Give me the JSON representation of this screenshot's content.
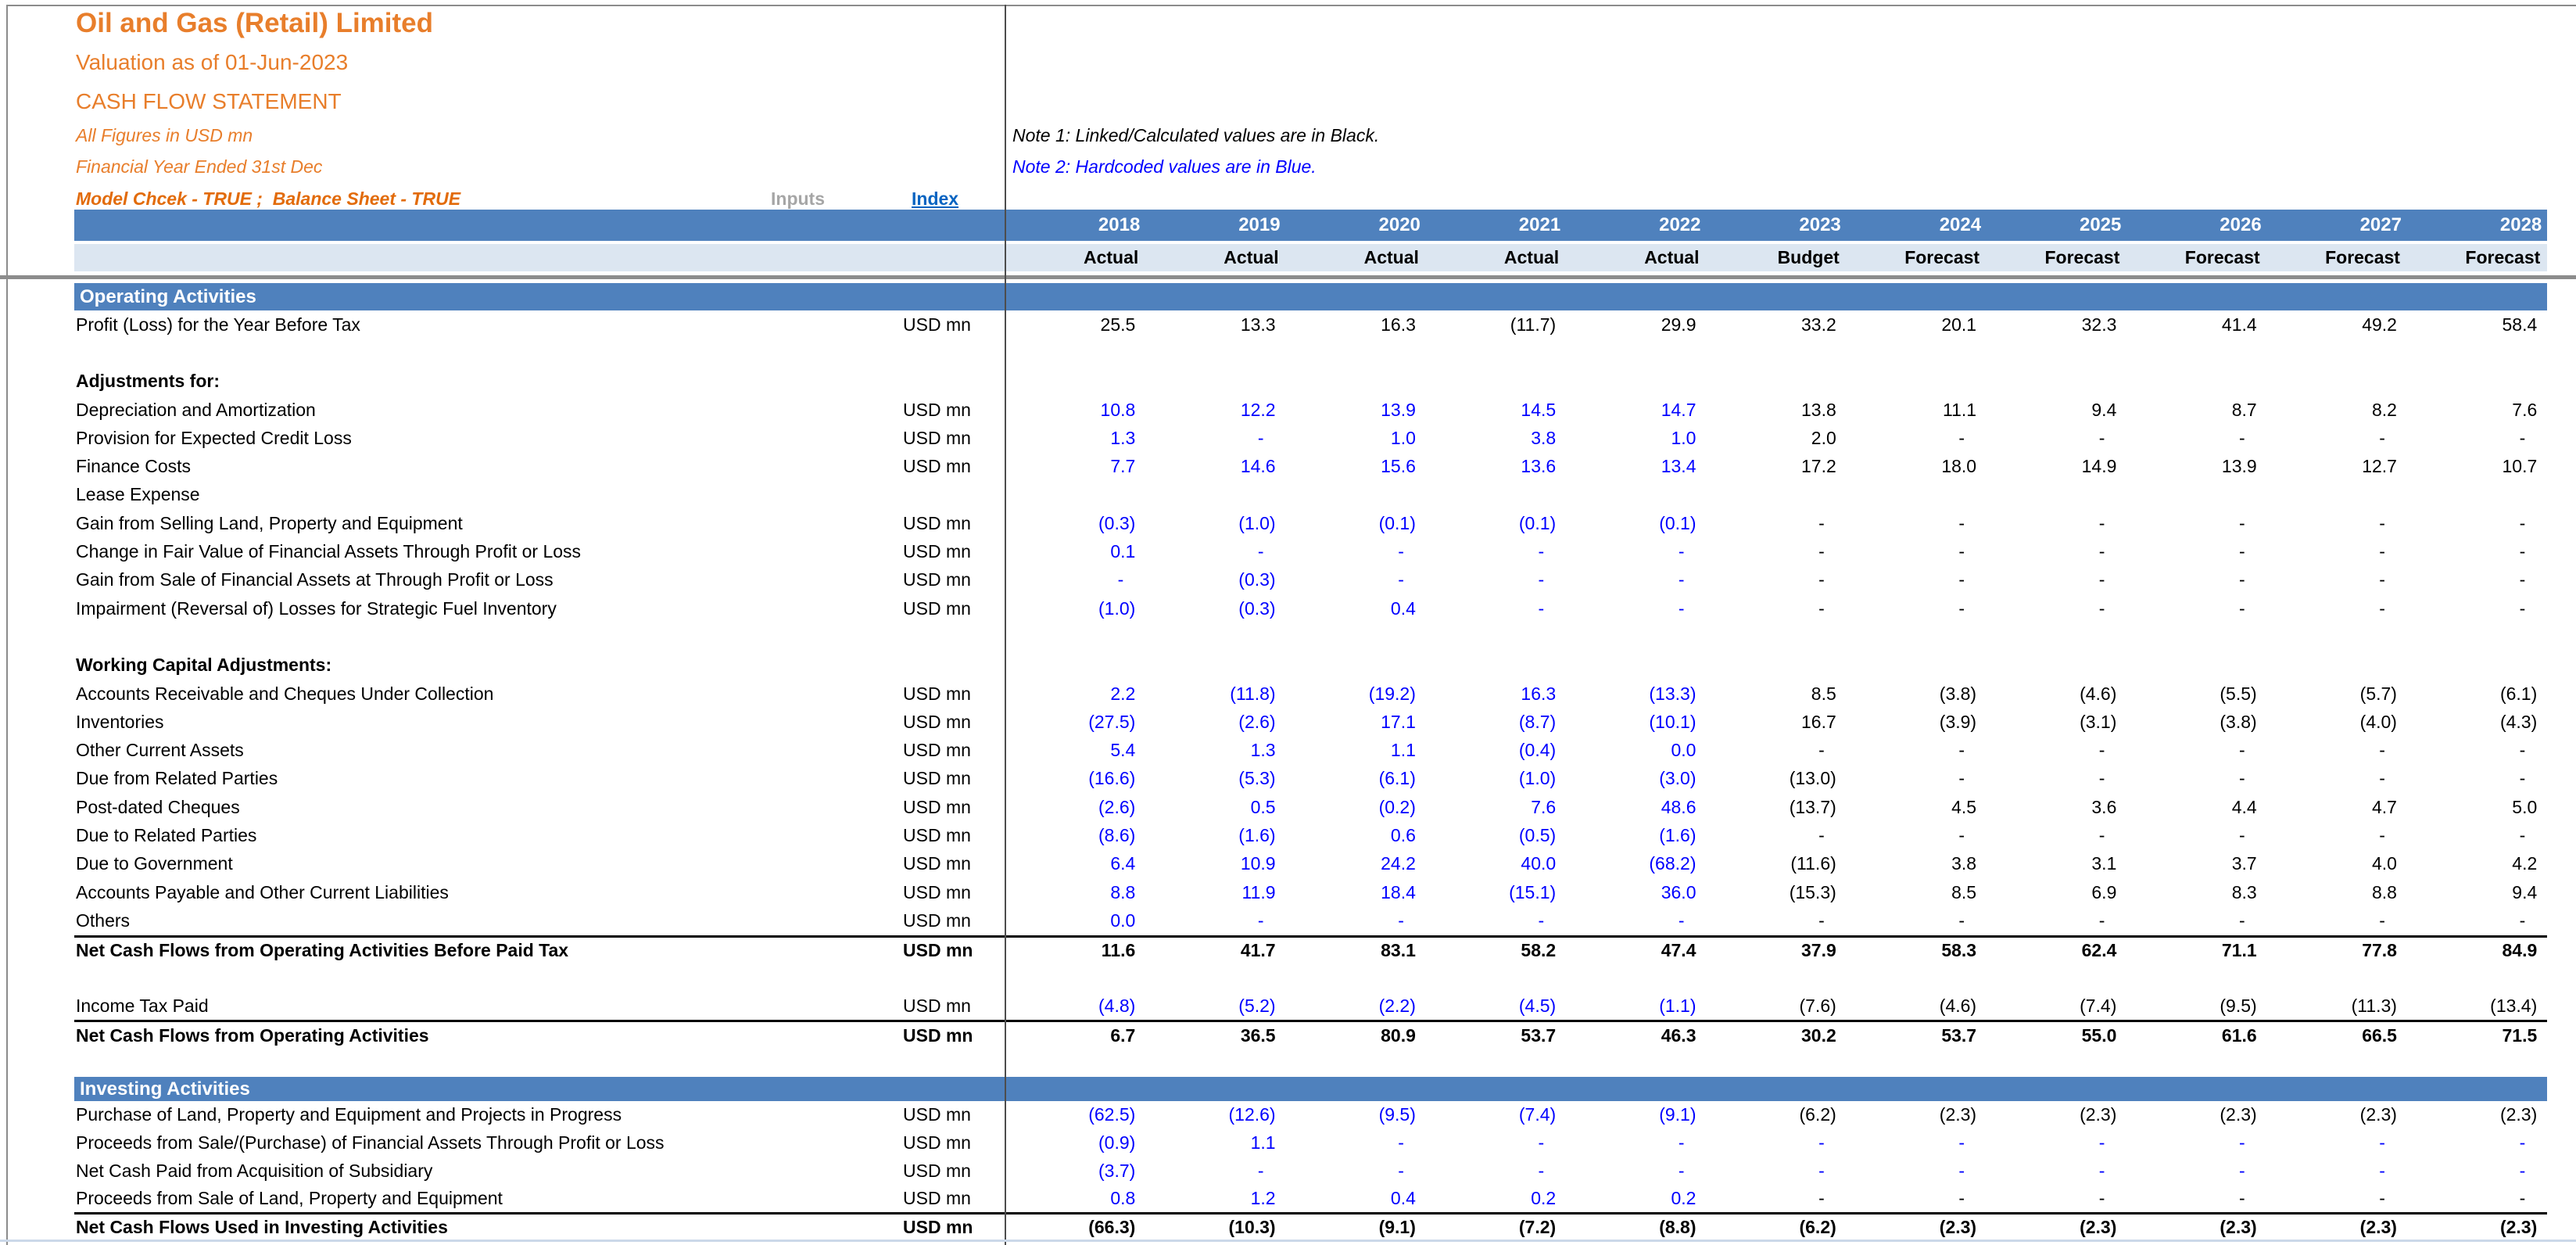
{
  "header": {
    "company": "Oil and Gas (Retail) Limited",
    "valuation": "Valuation as of 01-Jun-2023",
    "statement": "CASH FLOW STATEMENT",
    "figures_note": "All Figures in USD mn",
    "fy_note": "Financial Year Ended 31st Dec",
    "model_check": "Model Chcek - TRUE ;  Balance Sheet - TRUE",
    "inputs_label": "Inputs",
    "index_link": "Index"
  },
  "notes": {
    "note1": "Note 1: Linked/Calculated values are in Black.",
    "note2": "Note 2: Hardcoded values are in Blue."
  },
  "colors": {
    "band_blue": "#4F81BD",
    "band_light": "#DCE6F1",
    "hardcoded_blue": "#0000FF",
    "calculated_black": "#000000",
    "title_orange": "#E87E2B",
    "model_check_orange": "#E26B0A",
    "link_blue": "#0563C1",
    "inputs_gray": "#A6A6A6"
  },
  "columns": {
    "years": [
      "2018",
      "2019",
      "2020",
      "2021",
      "2022",
      "2023",
      "2024",
      "2025",
      "2026",
      "2027",
      "2028"
    ],
    "status": [
      "Actual",
      "Actual",
      "Actual",
      "Actual",
      "Actual",
      "Budget",
      "Forecast",
      "Forecast",
      "Forecast",
      "Forecast",
      "Forecast"
    ]
  },
  "unit_label": "USD mn",
  "sections": [
    {
      "title": "Operating Activities",
      "rows": [
        {
          "label": "Profit (Loss) for the Year Before Tax",
          "unit": "USD mn",
          "values": [
            "25.5",
            "13.3",
            "16.3",
            "(11.7)",
            "29.9",
            "33.2",
            "20.1",
            "32.3",
            "41.4",
            "49.2",
            "58.4"
          ],
          "blue": 0
        },
        {
          "blank": true
        },
        {
          "label": "Adjustments for:",
          "subheader": true
        },
        {
          "label": "Depreciation and Amortization",
          "unit": "USD mn",
          "values": [
            "10.8",
            "12.2",
            "13.9",
            "14.5",
            "14.7",
            "13.8",
            "11.1",
            "9.4",
            "8.7",
            "8.2",
            "7.6"
          ],
          "blue": 5
        },
        {
          "label": "Provision for Expected Credit Loss",
          "unit": "USD mn",
          "values": [
            "1.3",
            "-",
            "1.0",
            "3.8",
            "1.0",
            "2.0",
            "-",
            "-",
            "-",
            "-",
            "-"
          ],
          "blue": 5
        },
        {
          "label": "Finance Costs",
          "unit": "USD mn",
          "values": [
            "7.7",
            "14.6",
            "15.6",
            "13.6",
            "13.4",
            "17.2",
            "18.0",
            "14.9",
            "13.9",
            "12.7",
            "10.7"
          ],
          "blue": 5
        },
        {
          "label": "Lease Expense",
          "unit": "",
          "values": null
        },
        {
          "label": "Gain from Selling Land, Property and Equipment",
          "unit": "USD mn",
          "values": [
            "(0.3)",
            "(1.0)",
            "(0.1)",
            "(0.1)",
            "(0.1)",
            "-",
            "-",
            "-",
            "-",
            "-",
            "-"
          ],
          "blue": 5
        },
        {
          "label": "Change in Fair Value of Financial Assets Through Profit or Loss",
          "unit": "USD mn",
          "values": [
            "0.1",
            "-",
            "-",
            "-",
            "-",
            "-",
            "-",
            "-",
            "-",
            "-",
            "-"
          ],
          "blue": 5
        },
        {
          "label": "Gain from Sale of Financial Assets at Through Profit or Loss",
          "unit": "USD mn",
          "values": [
            "-",
            "(0.3)",
            "-",
            "-",
            "-",
            "-",
            "-",
            "-",
            "-",
            "-",
            "-"
          ],
          "blue": 5
        },
        {
          "label": "Impairment (Reversal of) Losses for Strategic Fuel Inventory",
          "unit": "USD mn",
          "values": [
            "(1.0)",
            "(0.3)",
            "0.4",
            "-",
            "-",
            "-",
            "-",
            "-",
            "-",
            "-",
            "-"
          ],
          "blue": 5
        },
        {
          "blank": true
        },
        {
          "label": "Working Capital Adjustments:",
          "subheader": true
        },
        {
          "label": "Accounts Receivable and Cheques Under Collection",
          "unit": "USD mn",
          "values": [
            "2.2",
            "(11.8)",
            "(19.2)",
            "16.3",
            "(13.3)",
            "8.5",
            "(3.8)",
            "(4.6)",
            "(5.5)",
            "(5.7)",
            "(6.1)"
          ],
          "blue": 5
        },
        {
          "label": "Inventories",
          "unit": "USD mn",
          "values": [
            "(27.5)",
            "(2.6)",
            "17.1",
            "(8.7)",
            "(10.1)",
            "16.7",
            "(3.9)",
            "(3.1)",
            "(3.8)",
            "(4.0)",
            "(4.3)"
          ],
          "blue": 5
        },
        {
          "label": "Other Current Assets",
          "unit": "USD mn",
          "values": [
            "5.4",
            "1.3",
            "1.1",
            "(0.4)",
            "0.0",
            "-",
            "-",
            "-",
            "-",
            "-",
            "-"
          ],
          "blue": 5
        },
        {
          "label": "Due from Related Parties",
          "unit": "USD mn",
          "values": [
            "(16.6)",
            "(5.3)",
            "(6.1)",
            "(1.0)",
            "(3.0)",
            "(13.0)",
            "-",
            "-",
            "-",
            "-",
            "-"
          ],
          "blue": 5
        },
        {
          "label": "Post-dated Cheques",
          "unit": "USD mn",
          "values": [
            "(2.6)",
            "0.5",
            "(0.2)",
            "7.6",
            "48.6",
            "(13.7)",
            "4.5",
            "3.6",
            "4.4",
            "4.7",
            "5.0"
          ],
          "blue": 5
        },
        {
          "label": "Due to Related Parties",
          "unit": "USD mn",
          "values": [
            "(8.6)",
            "(1.6)",
            "0.6",
            "(0.5)",
            "(1.6)",
            "-",
            "-",
            "-",
            "-",
            "-",
            "-"
          ],
          "blue": 5
        },
        {
          "label": "Due to Government",
          "unit": "USD mn",
          "values": [
            "6.4",
            "10.9",
            "24.2",
            "40.0",
            "(68.2)",
            "(11.6)",
            "3.8",
            "3.1",
            "3.7",
            "4.0",
            "4.2"
          ],
          "blue": 5
        },
        {
          "label": "Accounts Payable and Other Current Liabilities",
          "unit": "USD mn",
          "values": [
            "8.8",
            "11.9",
            "18.4",
            "(15.1)",
            "36.0",
            "(15.3)",
            "8.5",
            "6.9",
            "8.3",
            "8.8",
            "9.4"
          ],
          "blue": 5
        },
        {
          "label": "Others",
          "unit": "USD mn",
          "values": [
            "0.0",
            "-",
            "-",
            "-",
            "-",
            "-",
            "-",
            "-",
            "-",
            "-",
            "-"
          ],
          "blue": 5
        },
        {
          "label": "Net Cash Flows from Operating Activities Before Paid Tax",
          "unit": "USD mn",
          "values": [
            "11.6",
            "41.7",
            "83.1",
            "58.2",
            "47.4",
            "37.9",
            "58.3",
            "62.4",
            "71.1",
            "77.8",
            "84.9"
          ],
          "blue": 0,
          "bold": true,
          "border_top": true
        },
        {
          "blank": true
        },
        {
          "label": "Income Tax Paid",
          "unit": "USD mn",
          "values": [
            "(4.8)",
            "(5.2)",
            "(2.2)",
            "(4.5)",
            "(1.1)",
            "(7.6)",
            "(4.6)",
            "(7.4)",
            "(9.5)",
            "(11.3)",
            "(13.4)"
          ],
          "blue": 5
        },
        {
          "label": "Net Cash Flows from Operating Activities",
          "unit": "USD mn",
          "values": [
            "6.7",
            "36.5",
            "80.9",
            "53.7",
            "46.3",
            "30.2",
            "53.7",
            "55.0",
            "61.6",
            "66.5",
            "71.5"
          ],
          "blue": 0,
          "bold": true,
          "border_top": true
        },
        {
          "blank": true
        }
      ]
    },
    {
      "title": "Investing Activities",
      "rows": [
        {
          "label": "Purchase of Land, Property and Equipment and Projects in Progress",
          "unit": "USD mn",
          "values": [
            "(62.5)",
            "(12.6)",
            "(9.5)",
            "(7.4)",
            "(9.1)",
            "(6.2)",
            "(2.3)",
            "(2.3)",
            "(2.3)",
            "(2.3)",
            "(2.3)"
          ],
          "blue": 5
        },
        {
          "label": "Proceeds from Sale/(Purchase) of Financial Assets Through Profit or Loss",
          "unit": "USD mn",
          "values": [
            "(0.9)",
            "1.1",
            "-",
            "-",
            "-",
            "-",
            "-",
            "-",
            "-",
            "-",
            "-"
          ],
          "blue": 11
        },
        {
          "label": "Net Cash Paid from Acquisition of Subsidiary",
          "unit": "USD mn",
          "values": [
            "(3.7)",
            "-",
            "-",
            "-",
            "-",
            "-",
            "-",
            "-",
            "-",
            "-",
            "-"
          ],
          "blue": 11
        },
        {
          "label": "Proceeds from Sale of Land, Property and Equipment",
          "unit": "USD mn",
          "values": [
            "0.8",
            "1.2",
            "0.4",
            "0.2",
            "0.2",
            "-",
            "-",
            "-",
            "-",
            "-",
            "-"
          ],
          "blue": 5
        },
        {
          "label": "Net Cash Flows Used in Investing Activities",
          "unit": "USD mn",
          "values": [
            "(66.3)",
            "(10.3)",
            "(9.1)",
            "(7.2)",
            "(8.8)",
            "(6.2)",
            "(2.3)",
            "(2.3)",
            "(2.3)",
            "(2.3)",
            "(2.3)"
          ],
          "blue": 0,
          "bold": true,
          "border_top": true
        }
      ]
    }
  ]
}
